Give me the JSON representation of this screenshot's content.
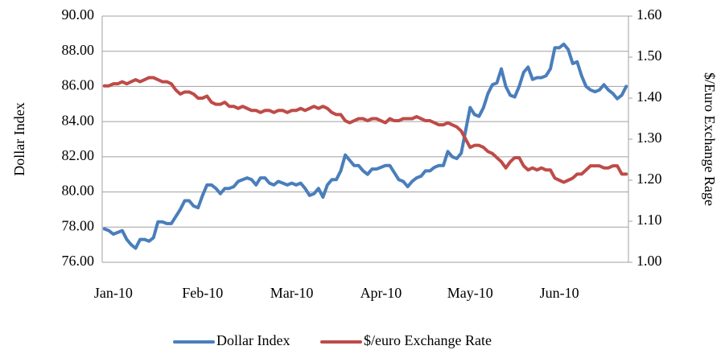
{
  "chart_data": {
    "type": "line",
    "y_label": "Dollar Index",
    "y2_label": "$/Euro Exchange Rage",
    "categories": [
      null,
      null,
      "Jan-10",
      null,
      null,
      null,
      null,
      null,
      null,
      null,
      null,
      null,
      null,
      null,
      null,
      null,
      null,
      null,
      null,
      null,
      null,
      null,
      "Feb-10",
      null,
      null,
      null,
      null,
      null,
      null,
      null,
      null,
      null,
      null,
      null,
      null,
      null,
      null,
      null,
      null,
      null,
      null,
      null,
      "Mar-10",
      null,
      null,
      null,
      null,
      null,
      null,
      null,
      null,
      null,
      null,
      null,
      null,
      null,
      null,
      null,
      null,
      null,
      null,
      null,
      "Apr-10",
      null,
      null,
      null,
      null,
      null,
      null,
      null,
      null,
      null,
      null,
      null,
      null,
      null,
      null,
      null,
      null,
      null,
      null,
      null,
      "May-10",
      null,
      null,
      null,
      null,
      null,
      null,
      null,
      null,
      null,
      null,
      null,
      null,
      null,
      null,
      null,
      null,
      null,
      null,
      null,
      "Jun-10",
      null,
      null,
      null,
      null,
      null,
      null,
      null,
      null,
      null,
      null,
      null,
      null,
      null,
      null,
      null
    ],
    "series": [
      {
        "name": "Dollar Index",
        "color": "#4a7ebb",
        "axis": "y",
        "values": [
          77.9,
          77.8,
          77.6,
          77.7,
          77.8,
          77.3,
          77.0,
          76.8,
          77.3,
          77.3,
          77.2,
          77.4,
          78.3,
          78.3,
          78.2,
          78.2,
          78.6,
          79.0,
          79.5,
          79.5,
          79.2,
          79.1,
          79.8,
          80.4,
          80.4,
          80.2,
          79.9,
          80.2,
          80.2,
          80.3,
          80.6,
          80.7,
          80.8,
          80.7,
          80.4,
          80.8,
          80.8,
          80.5,
          80.4,
          80.6,
          80.5,
          80.4,
          80.5,
          80.4,
          80.5,
          80.2,
          79.8,
          79.9,
          80.2,
          79.7,
          80.4,
          80.7,
          80.7,
          81.2,
          82.1,
          81.8,
          81.5,
          81.5,
          81.2,
          81.0,
          81.3,
          81.3,
          81.4,
          81.5,
          81.5,
          81.1,
          80.7,
          80.6,
          80.3,
          80.6,
          80.8,
          80.9,
          81.2,
          81.2,
          81.4,
          81.5,
          81.5,
          82.3,
          82.0,
          81.9,
          82.2,
          83.5,
          84.8,
          84.4,
          84.3,
          84.8,
          85.6,
          86.1,
          86.2,
          87.0,
          86.0,
          85.5,
          85.4,
          86.0,
          86.8,
          87.1,
          86.4,
          86.5,
          86.5,
          86.6,
          87.0,
          88.2,
          88.2,
          88.4,
          88.1,
          87.3,
          87.4,
          86.6,
          86.0,
          85.8,
          85.7,
          85.8,
          86.1,
          85.8,
          85.6,
          85.3,
          85.5,
          86.0
        ]
      },
      {
        "name": "$/euro Exchange Rate",
        "color": "#be4b48",
        "axis": "y2",
        "values": [
          1.43,
          1.43,
          1.435,
          1.435,
          1.44,
          1.435,
          1.44,
          1.445,
          1.44,
          1.445,
          1.45,
          1.45,
          1.445,
          1.44,
          1.44,
          1.435,
          1.42,
          1.41,
          1.415,
          1.415,
          1.41,
          1.4,
          1.4,
          1.405,
          1.39,
          1.385,
          1.385,
          1.39,
          1.38,
          1.38,
          1.375,
          1.38,
          1.375,
          1.37,
          1.37,
          1.365,
          1.37,
          1.37,
          1.365,
          1.37,
          1.37,
          1.365,
          1.37,
          1.37,
          1.375,
          1.37,
          1.375,
          1.38,
          1.375,
          1.38,
          1.375,
          1.365,
          1.36,
          1.36,
          1.345,
          1.34,
          1.345,
          1.35,
          1.35,
          1.345,
          1.35,
          1.35,
          1.345,
          1.34,
          1.35,
          1.345,
          1.345,
          1.35,
          1.35,
          1.35,
          1.355,
          1.35,
          1.345,
          1.345,
          1.34,
          1.335,
          1.335,
          1.34,
          1.335,
          1.33,
          1.32,
          1.3,
          1.28,
          1.285,
          1.285,
          1.28,
          1.27,
          1.265,
          1.255,
          1.245,
          1.23,
          1.245,
          1.255,
          1.255,
          1.235,
          1.225,
          1.23,
          1.225,
          1.23,
          1.225,
          1.225,
          1.205,
          1.2,
          1.195,
          1.2,
          1.205,
          1.215,
          1.215,
          1.225,
          1.235,
          1.235,
          1.235,
          1.23,
          1.23,
          1.235,
          1.235,
          1.215,
          1.215
        ]
      }
    ],
    "ylim": [
      76,
      90
    ],
    "yticks": [
      {
        "value": 76,
        "label": "76.00"
      },
      {
        "value": 78,
        "label": "78.00"
      },
      {
        "value": 80,
        "label": "80.00"
      },
      {
        "value": 82,
        "label": "82.00"
      },
      {
        "value": 84,
        "label": "84.00"
      },
      {
        "value": 86,
        "label": "86.00"
      },
      {
        "value": 88,
        "label": "88.00"
      },
      {
        "value": 90,
        "label": "90.00"
      }
    ],
    "y2lim": [
      1.0,
      1.6
    ],
    "y2ticks": [
      {
        "value": 1.0,
        "label": "1.00"
      },
      {
        "value": 1.1,
        "label": "1.10"
      },
      {
        "value": 1.2,
        "label": "1.20"
      },
      {
        "value": 1.3,
        "label": "1.30"
      },
      {
        "value": 1.4,
        "label": "1.40"
      },
      {
        "value": 1.5,
        "label": "1.50"
      },
      {
        "value": 1.6,
        "label": "1.60"
      }
    ],
    "grid": true,
    "legend": "bottom"
  }
}
